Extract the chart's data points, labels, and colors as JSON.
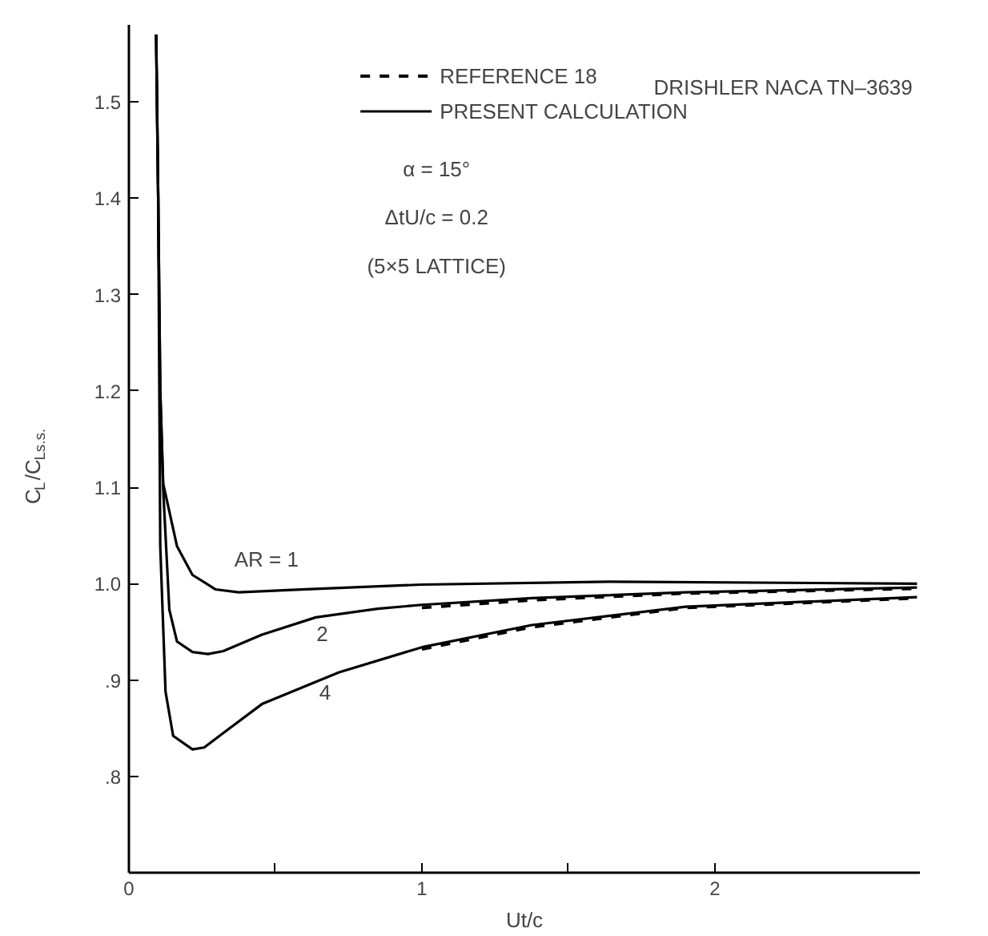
{
  "chart_data": {
    "type": "line",
    "xlabel": "Ut/c",
    "ylabel": "C$_{L}$/C$_{Ls.s.}$",
    "xlim": [
      0,
      2.7
    ],
    "ylim": [
      0.7,
      1.58
    ],
    "xticks": [
      0,
      {
        "value": 0.5,
        "label": null
      },
      1,
      {
        "value": 1.5,
        "label": null
      },
      2
    ],
    "yticks": [
      {
        "value": 0.8,
        "label": ".8"
      },
      {
        "value": 0.9,
        "label": ".9"
      },
      {
        "value": 1.0,
        "label": "1.0"
      },
      1.1,
      1.2,
      1.3,
      1.4,
      1.5
    ],
    "grid": false,
    "legend": "top",
    "marker": "none",
    "series": [
      {
        "name": "PRESENT CALCULATION",
        "color": "#000000",
        "line_style": "solid",
        "x": [
          0.093,
          0.1,
          0.107,
          0.117,
          0.164,
          0.217,
          0.296,
          0.375,
          0.586,
          1.0,
          1.64,
          2.69
        ],
        "values": [
          1.57,
          1.4,
          1.2,
          1.104,
          1.039,
          1.009,
          0.994,
          0.991,
          0.994,
          0.999,
          1.002,
          1.0
        ]
      },
      {
        "color": "#000000",
        "line_style": "solid",
        "x": [
          0.093,
          0.1,
          0.107,
          0.117,
          0.138,
          0.164,
          0.217,
          0.27,
          0.322,
          0.454,
          0.638,
          0.849,
          1.0,
          1.375,
          1.9,
          2.69
        ],
        "values": [
          1.57,
          1.4,
          1.2,
          1.098,
          0.973,
          0.94,
          0.929,
          0.927,
          0.93,
          0.947,
          0.965,
          0.974,
          0.978,
          0.985,
          0.991,
          0.996
        ]
      },
      {
        "color": "#000000",
        "line_style": "solid",
        "x": [
          0.093,
          0.1,
          0.107,
          0.125,
          0.151,
          0.217,
          0.257,
          0.322,
          0.454,
          0.717,
          1.0,
          1.375,
          1.9,
          2.69
        ],
        "values": [
          1.57,
          1.4,
          1.039,
          0.888,
          0.842,
          0.828,
          0.83,
          0.845,
          0.875,
          0.908,
          0.934,
          0.957,
          0.976,
          0.986
        ]
      },
      {
        "name": "REFERENCE 18",
        "color": "#000000",
        "line_style": "dashed",
        "x": [
          1.0,
          1.375,
          1.9,
          2.69
        ],
        "values": [
          0.975,
          0.983,
          0.99,
          0.995
        ]
      },
      {
        "color": "#000000",
        "line_style": "dashed",
        "x": [
          1.0,
          1.375,
          1.9,
          2.69
        ],
        "values": [
          0.932,
          0.955,
          0.975,
          0.985
        ]
      }
    ],
    "annotations": [
      "AR = 1",
      "2",
      "4",
      "DRISHLER NACA TN–3639",
      "α = 15°",
      "ΔtU/c = 0.2",
      "(5×5 LATTICE)"
    ]
  }
}
